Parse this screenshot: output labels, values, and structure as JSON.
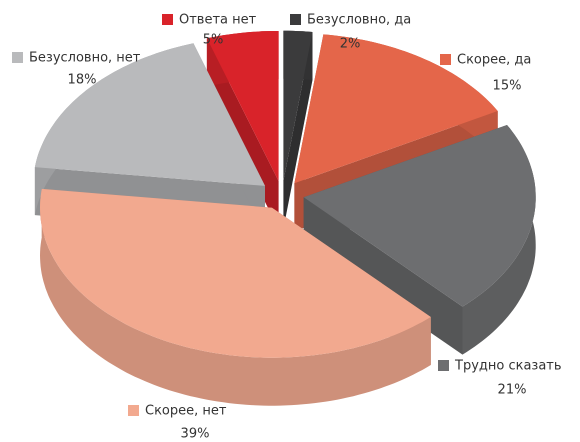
{
  "chart_data": {
    "type": "pie3d",
    "categories": [
      "Безусловно, да",
      "Скорее, да",
      "Трудно сказать",
      "Скорее, нет",
      "Безусловно, нет",
      "Ответа нет"
    ],
    "values": [
      2,
      15,
      21,
      39,
      18,
      5
    ],
    "value_labels": [
      "2%",
      "15%",
      "21%",
      "39%",
      "18%",
      "5%"
    ],
    "colors": [
      "#3b3b3c",
      "#e4664a",
      "#6d6e70",
      "#f2a98f",
      "#b9babc",
      "#d9232a"
    ]
  }
}
